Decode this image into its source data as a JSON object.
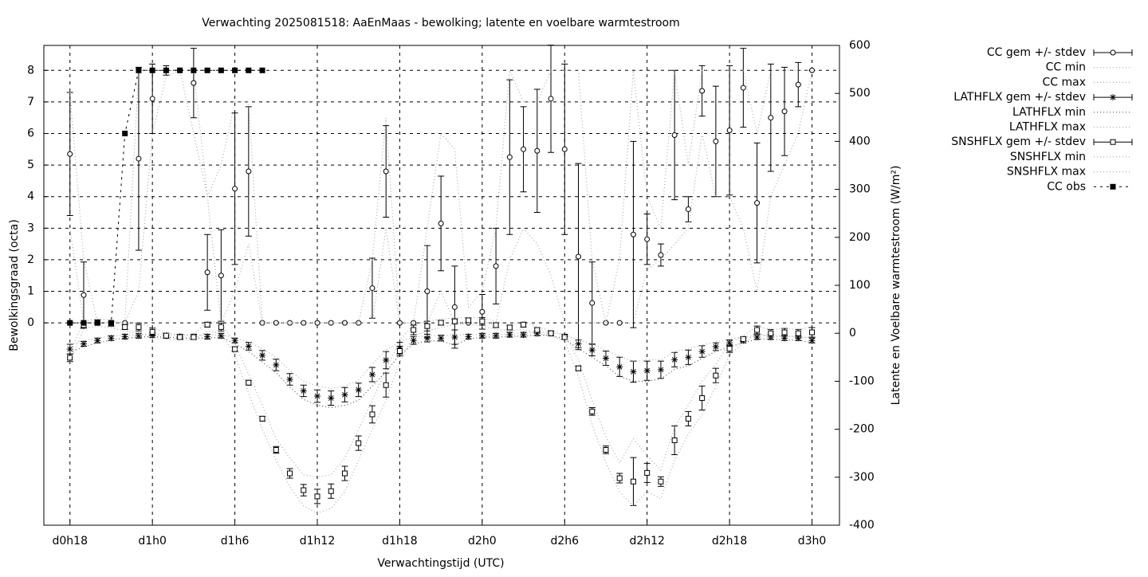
{
  "chart_data": {
    "type": "line",
    "title": "Verwachting 2025081518: AaEnMaas - bewolking; latente en voelbare warmtestroom",
    "xlabel": "Verwachtingstijd (UTC)",
    "ylabel": "Bewolkingsgraad (octa)",
    "y2label": "Latente en Voelbare warmtestroom (W/m²)",
    "grid": true,
    "legend": "outside-right",
    "x": [
      18,
      19,
      20,
      21,
      22,
      23,
      24,
      25,
      26,
      27,
      28,
      29,
      30,
      31,
      32,
      33,
      34,
      35,
      36,
      37,
      38,
      39,
      40,
      41,
      42,
      43,
      44,
      45,
      46,
      47,
      48,
      49,
      50,
      51,
      52,
      53,
      54,
      55,
      56,
      57,
      58,
      59,
      60,
      61,
      62,
      63,
      64,
      65,
      66,
      67,
      68,
      69,
      70,
      71,
      72
    ],
    "xlim": [
      16.1,
      74
    ],
    "xticks": [
      {
        "value": 18,
        "label": "d0h18"
      },
      {
        "value": 24,
        "label": "d1h0"
      },
      {
        "value": 30,
        "label": "d1h6"
      },
      {
        "value": 36,
        "label": "d1h12"
      },
      {
        "value": 42,
        "label": "d1h18"
      },
      {
        "value": 48,
        "label": "d2h0"
      },
      {
        "value": 54,
        "label": "d2h6"
      },
      {
        "value": 60,
        "label": "d2h12"
      },
      {
        "value": 66,
        "label": "d2h18"
      },
      {
        "value": 72,
        "label": "d3h0"
      }
    ],
    "ylim": [
      -6.41,
      8.79
    ],
    "yticks": [
      0,
      1,
      2,
      3,
      4,
      5,
      6,
      7,
      8
    ],
    "y2lim": [
      -400,
      600
    ],
    "y2ticks": [
      -400,
      -300,
      -200,
      -100,
      0,
      100,
      200,
      300,
      400,
      500,
      600
    ],
    "series": [
      {
        "name": "CC gem +/- stdev",
        "color": "#000000",
        "style": "errorbars",
        "marker": "circle",
        "values": [
          5.35,
          0.88,
          0,
          0,
          0,
          5.2,
          7.1,
          8,
          8,
          7.6,
          1.6,
          1.5,
          4.25,
          4.8,
          0,
          0,
          0,
          0,
          0,
          0,
          0,
          0,
          1.1,
          4.8,
          0,
          0,
          1.0,
          3.15,
          0.5,
          0,
          0.35,
          1.8,
          5.25,
          5.5,
          5.45,
          7.1,
          5.5,
          2.1,
          0.63,
          0,
          0,
          2.8,
          2.65,
          2.15,
          5.95,
          3.6,
          7.35,
          5.75,
          6.1,
          7.45,
          3.8,
          6.5,
          6.7,
          7.55,
          8
        ],
        "errors": [
          1.95,
          1.05,
          0,
          0,
          0,
          2.9,
          1.1,
          0.15,
          0,
          1.1,
          1.2,
          1.45,
          2.4,
          2.05,
          0,
          0,
          0,
          0,
          0,
          0,
          0,
          0,
          0.95,
          1.45,
          0,
          0,
          1.45,
          1.5,
          1.3,
          0,
          0.55,
          1.2,
          2.45,
          1.35,
          1.95,
          1.7,
          2.7,
          2.95,
          1.3,
          0,
          0,
          2.95,
          0.8,
          0.35,
          2.05,
          0.4,
          0.8,
          1.75,
          2.05,
          1.25,
          1.9,
          1.7,
          1.4,
          0.7,
          0
        ]
      },
      {
        "name": "CC min",
        "color": "#aaaaaa",
        "style": "dotted",
        "values": [
          3,
          0,
          0,
          0,
          0,
          1,
          6,
          7.8,
          8,
          6,
          4,
          0,
          1,
          2.5,
          0,
          0,
          0,
          0,
          0,
          0,
          0,
          0,
          0,
          3,
          0,
          0,
          0,
          1,
          0,
          0,
          0,
          0,
          2,
          3,
          2.5,
          1.5,
          0,
          0,
          0,
          0,
          0,
          0,
          1.7,
          2,
          2.5,
          3,
          6,
          4,
          4,
          3,
          1,
          4,
          5,
          6,
          8
        ]
      },
      {
        "name": "CC max",
        "color": "#aaaaaa",
        "style": "dotted",
        "values": [
          7.3,
          2,
          0,
          0,
          0,
          8,
          8,
          8,
          8,
          8,
          4,
          5,
          7,
          7,
          0,
          0,
          0,
          0,
          0,
          0,
          0,
          0,
          2,
          6.5,
          0,
          0,
          3,
          6,
          5.5,
          0.5,
          1,
          3,
          8,
          7,
          7,
          8,
          8,
          8,
          2,
          0,
          2,
          8,
          4,
          3,
          8,
          5,
          8,
          8,
          8,
          8,
          6,
          8,
          8,
          8,
          8
        ]
      },
      {
        "name": "LATHFLX gem +/- stdev",
        "color": "#000000",
        "style": "errorbars",
        "marker": "star",
        "axis": "y2",
        "values": [
          -33,
          -22,
          -15,
          -10,
          -7,
          -5,
          -4,
          -5,
          -7,
          -7,
          -7,
          -5,
          -15,
          -27,
          -46,
          -66,
          -96,
          -120,
          -131,
          -135,
          -128,
          -118,
          -86,
          -56,
          -31,
          -15,
          -10,
          -10,
          -8,
          -7,
          -5,
          -5,
          -3,
          -3,
          0,
          0,
          -7,
          -22,
          -35,
          -52,
          -70,
          -80,
          -78,
          -76,
          -55,
          -50,
          -38,
          -28,
          -20,
          -15,
          -8,
          -8,
          -10,
          -10,
          -15
        ],
        "errors": [
          10,
          5,
          5,
          5,
          5,
          5,
          5,
          5,
          5,
          5,
          5,
          5,
          5,
          8,
          10,
          12,
          12,
          12,
          13,
          15,
          15,
          14,
          15,
          18,
          12,
          8,
          8,
          6,
          15,
          5,
          5,
          5,
          5,
          5,
          5,
          5,
          5,
          8,
          12,
          15,
          20,
          22,
          20,
          18,
          15,
          15,
          12,
          8,
          6,
          5,
          5,
          5,
          5,
          5,
          5
        ]
      },
      {
        "name": "LATHFLX min",
        "color": "#555555",
        "style": "dotted",
        "axis": "y2",
        "values": [
          -40,
          -28,
          -20,
          -14,
          -10,
          -8,
          -7,
          -8,
          -10,
          -10,
          -10,
          -8,
          -22,
          -38,
          -60,
          -82,
          -112,
          -138,
          -150,
          -155,
          -150,
          -140,
          -110,
          -80,
          -45,
          -22,
          -16,
          -16,
          -25,
          -12,
          -8,
          -8,
          -6,
          -6,
          -4,
          -4,
          -12,
          -32,
          -50,
          -68,
          -90,
          -100,
          -100,
          -95,
          -75,
          -68,
          -52,
          -38,
          -28,
          -20,
          -12,
          -12,
          -14,
          -14,
          -20
        ]
      },
      {
        "name": "LATHFLX max",
        "color": "#aaaaaa",
        "style": "dotted",
        "axis": "y2",
        "values": [
          -25,
          -15,
          -10,
          -6,
          -4,
          -3,
          -2,
          -3,
          -4,
          -4,
          -4,
          -3,
          -10,
          -18,
          -32,
          -50,
          -78,
          -100,
          -110,
          -115,
          -110,
          -98,
          -65,
          -35,
          -18,
          -8,
          -5,
          -5,
          -3,
          -3,
          -2,
          -2,
          -1,
          -1,
          2,
          2,
          -3,
          -14,
          -22,
          -35,
          -48,
          -58,
          -55,
          -55,
          -38,
          -32,
          -25,
          -18,
          -12,
          -8,
          -4,
          -4,
          -6,
          -6,
          -10
        ]
      },
      {
        "name": "SNSHFLX gem +/- stdev",
        "color": "#000000",
        "style": "errorbars",
        "marker": "square",
        "axis": "y2",
        "values": [
          -51,
          17,
          23,
          20,
          13,
          13,
          3,
          -5,
          -8,
          -8,
          18,
          13,
          -33,
          -103,
          -178,
          -243,
          -292,
          -327,
          -340,
          -329,
          -292,
          -229,
          -169,
          -108,
          -37,
          7,
          15,
          22,
          25,
          27,
          25,
          17,
          12,
          18,
          7,
          0,
          -8,
          -73,
          -163,
          -243,
          -302,
          -309,
          -291,
          -309,
          -223,
          -178,
          -135,
          -88,
          -32,
          -12,
          7,
          0,
          2,
          0,
          2
        ],
        "errors": [
          8,
          5,
          5,
          5,
          5,
          8,
          8,
          5,
          5,
          5,
          5,
          8,
          5,
          5,
          5,
          7,
          10,
          12,
          15,
          15,
          15,
          15,
          18,
          25,
          10,
          10,
          10,
          5,
          5,
          5,
          8,
          5,
          5,
          5,
          5,
          5,
          5,
          5,
          8,
          8,
          10,
          50,
          20,
          10,
          30,
          15,
          25,
          15,
          8,
          5,
          8,
          8,
          8,
          8,
          10
        ]
      },
      {
        "name": "SNSHFLX min",
        "color": "#aaaaaa",
        "style": "dotted",
        "axis": "y2",
        "values": [
          -60,
          10,
          15,
          12,
          5,
          0,
          -8,
          -12,
          -14,
          -14,
          5,
          0,
          -45,
          -125,
          -200,
          -265,
          -320,
          -360,
          -375,
          -365,
          -330,
          -265,
          -200,
          -140,
          -60,
          -5,
          5,
          12,
          18,
          20,
          15,
          8,
          5,
          8,
          0,
          -6,
          -15,
          -90,
          -190,
          -270,
          -330,
          -360,
          -330,
          -345,
          -265,
          -210,
          -170,
          -110,
          -45,
          -20,
          0,
          -8,
          -6,
          -8,
          -10
        ]
      },
      {
        "name": "SNSHFLX max",
        "color": "#aaaaaa",
        "style": "dotted",
        "axis": "y2",
        "values": [
          -40,
          25,
          30,
          28,
          20,
          22,
          12,
          0,
          -3,
          -3,
          25,
          22,
          -22,
          -85,
          -150,
          -220,
          -260,
          -295,
          -300,
          -295,
          -260,
          -200,
          -140,
          -75,
          -15,
          18,
          25,
          30,
          32,
          33,
          32,
          25,
          18,
          25,
          14,
          5,
          -3,
          -55,
          -140,
          -215,
          -270,
          -220,
          -255,
          -285,
          -195,
          -150,
          -100,
          -65,
          -20,
          -5,
          14,
          8,
          10,
          8,
          14
        ]
      },
      {
        "name": "CC obs",
        "color": "#000000",
        "style": "dashed",
        "marker": "filled-square",
        "values": [
          0,
          0,
          0,
          0,
          6,
          8,
          8,
          8,
          8,
          8,
          8,
          8,
          8,
          8,
          8,
          null,
          null,
          null,
          null,
          null,
          null,
          null,
          null,
          null,
          null,
          null,
          null,
          null,
          null,
          null,
          null,
          null,
          null,
          null,
          null,
          null,
          null,
          null,
          null,
          null,
          null,
          null,
          null,
          null,
          null,
          null,
          null,
          null,
          null,
          null,
          null,
          null,
          null,
          null,
          null
        ]
      }
    ]
  }
}
